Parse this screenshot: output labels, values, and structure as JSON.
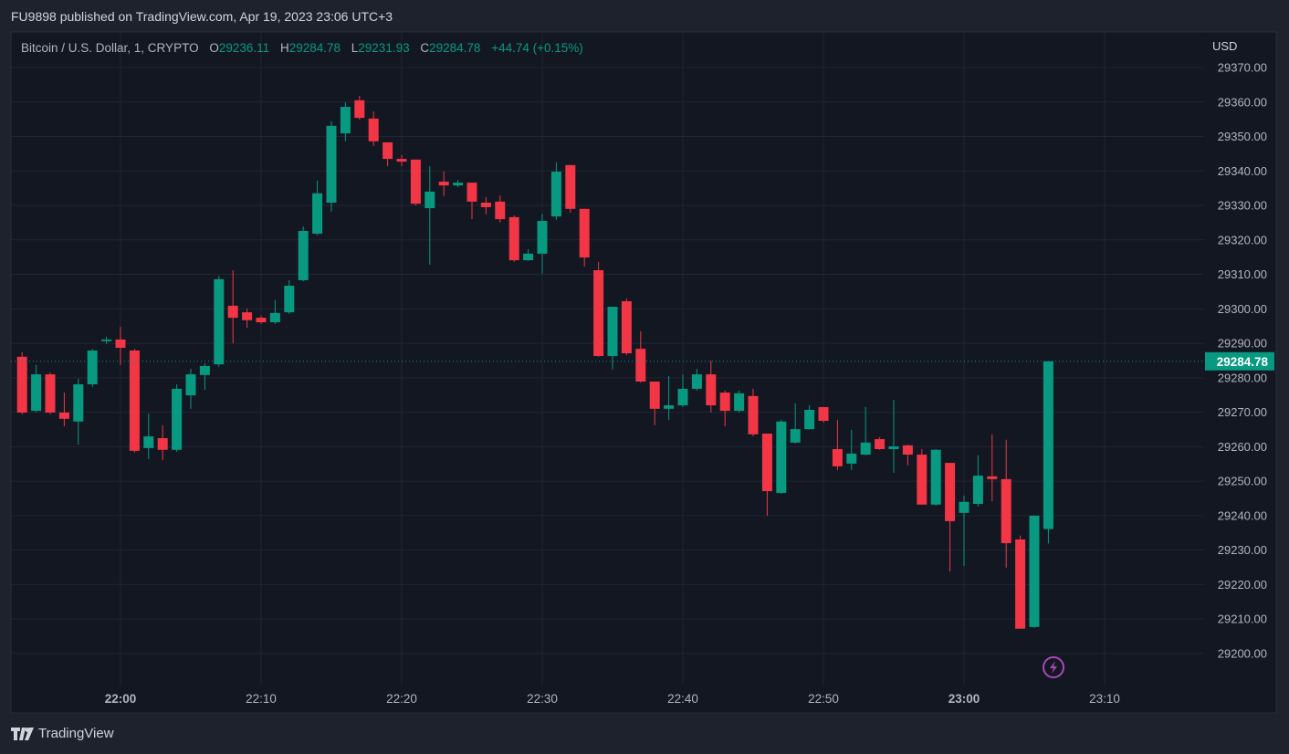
{
  "published": "FU9898 published on TradingView.com, Apr 19, 2023 23:06 UTC+3",
  "legend": {
    "symbol": "Bitcoin / U.S. Dollar, 1, CRYPTO",
    "o_label": "O",
    "o": "29236.11",
    "h_label": "H",
    "h": "29284.78",
    "l_label": "L",
    "l": "29231.93",
    "c_label": "C",
    "c": "29284.78",
    "change": "+44.74 (+0.15%)"
  },
  "footer": {
    "brand": "TradingView",
    "logo_icon": "tradingview-logo-icon"
  },
  "colors": {
    "up": "#089981",
    "down": "#f23645",
    "grid": "#222632",
    "bg": "#131722",
    "event": "#ab47bc"
  },
  "chart_data": {
    "type": "candlestick",
    "title": "Bitcoin / U.S. Dollar, 1, CRYPTO",
    "currency": "USD",
    "ylim": [
      29190,
      29375
    ],
    "y_ticks": [
      "29370.00",
      "29360.00",
      "29350.00",
      "29340.00",
      "29330.00",
      "29320.00",
      "29310.00",
      "29300.00",
      "29290.00",
      "29280.00",
      "29270.00",
      "29260.00",
      "29250.00",
      "29240.00",
      "29230.00",
      "29220.00",
      "29210.00",
      "29200.00"
    ],
    "x_ticks": [
      {
        "label": "22:00",
        "minute": 0,
        "bold": true
      },
      {
        "label": "22:10",
        "minute": 10
      },
      {
        "label": "22:20",
        "minute": 20
      },
      {
        "label": "22:30",
        "minute": 30
      },
      {
        "label": "22:40",
        "minute": 40
      },
      {
        "label": "22:50",
        "minute": 50
      },
      {
        "label": "23:00",
        "minute": 60,
        "bold": true
      },
      {
        "label": "23:10",
        "minute": 70
      }
    ],
    "first_candle_minute": -7,
    "last_price": "29284.78",
    "candles": [
      [
        29286.1,
        29287.4,
        29269.4,
        29269.9
      ],
      [
        29270.4,
        29283.7,
        29269.9,
        29281.0
      ],
      [
        29281.0,
        29281.5,
        29269.4,
        29269.9
      ],
      [
        29269.9,
        29275.7,
        29265.9,
        29268.1
      ],
      [
        29267.3,
        29279.7,
        29260.6,
        29278.1
      ],
      [
        29278.1,
        29288.4,
        29277.3,
        29287.9
      ],
      [
        29290.6,
        29291.9,
        29289.8,
        29291.1
      ],
      [
        29291.1,
        29294.8,
        29283.7,
        29288.7
      ],
      [
        29287.9,
        29288.4,
        29258.3,
        29258.8
      ],
      [
        29259.6,
        29269.6,
        29256.4,
        29263.0
      ],
      [
        29262.5,
        29266.2,
        29256.1,
        29259.1
      ],
      [
        29259.1,
        29278.1,
        29258.5,
        29276.8
      ],
      [
        29274.9,
        29282.6,
        29271.0,
        29281.0
      ],
      [
        29280.8,
        29284.2,
        29276.5,
        29283.4
      ],
      [
        29283.9,
        29309.6,
        29283.2,
        29308.6
      ],
      [
        29300.9,
        29311.2,
        29290.0,
        29297.4
      ],
      [
        29299.0,
        29300.1,
        29294.5,
        29296.7
      ],
      [
        29297.4,
        29298.0,
        29295.6,
        29296.1
      ],
      [
        29296.1,
        29302.5,
        29295.6,
        29298.8
      ],
      [
        29299.0,
        29308.3,
        29298.5,
        29306.7
      ],
      [
        29308.3,
        29323.9,
        29308.0,
        29322.6
      ],
      [
        29321.8,
        29337.2,
        29321.3,
        29333.5
      ],
      [
        29330.8,
        29354.4,
        29328.2,
        29353.1
      ],
      [
        29350.9,
        29359.9,
        29348.6,
        29358.6
      ],
      [
        29360.5,
        29361.8,
        29354.9,
        29355.4
      ],
      [
        29355.2,
        29357.3,
        29347.2,
        29348.6
      ],
      [
        29348.3,
        29348.3,
        29341.4,
        29343.5
      ],
      [
        29343.5,
        29344.6,
        29341.4,
        29342.7
      ],
      [
        29343.3,
        29343.3,
        29330.0,
        29330.5
      ],
      [
        29329.2,
        29341.4,
        29312.8,
        29334.0
      ],
      [
        29336.9,
        29339.8,
        29332.7,
        29335.8
      ],
      [
        29335.8,
        29337.4,
        29335.3,
        29336.6
      ],
      [
        29336.6,
        29336.6,
        29326.0,
        29331.1
      ],
      [
        29330.8,
        29332.4,
        29327.4,
        29329.5
      ],
      [
        29331.1,
        29332.9,
        29325.0,
        29326.0
      ],
      [
        29326.6,
        29327.1,
        29313.6,
        29314.1
      ],
      [
        29314.1,
        29317.3,
        29313.9,
        29316.0
      ],
      [
        29316.0,
        29327.6,
        29310.2,
        29325.5
      ],
      [
        29326.8,
        29342.5,
        29325.8,
        29339.8
      ],
      [
        29341.7,
        29341.7,
        29327.9,
        29329.0
      ],
      [
        29329.0,
        29329.0,
        29312.3,
        29314.9
      ],
      [
        29311.2,
        29313.6,
        29286.1,
        29286.3
      ],
      [
        29286.3,
        29300.6,
        29282.4,
        29300.6
      ],
      [
        29302.2,
        29303.0,
        29286.6,
        29287.1
      ],
      [
        29288.4,
        29293.5,
        29278.6,
        29278.9
      ],
      [
        29278.9,
        29278.9,
        29266.2,
        29271.0
      ],
      [
        29271.0,
        29280.5,
        29267.8,
        29272.0
      ],
      [
        29272.0,
        29281.0,
        29271.5,
        29276.8
      ],
      [
        29276.8,
        29282.6,
        29276.3,
        29281.0
      ],
      [
        29281.0,
        29285.0,
        29269.9,
        29272.0
      ],
      [
        29275.7,
        29276.3,
        29265.9,
        29270.4
      ],
      [
        29270.4,
        29276.3,
        29269.9,
        29275.5
      ],
      [
        29274.7,
        29276.8,
        29263.0,
        29263.6
      ],
      [
        29263.8,
        29263.8,
        29240.0,
        29247.1
      ],
      [
        29246.6,
        29267.8,
        29246.3,
        29267.3
      ],
      [
        29261.2,
        29272.6,
        29260.9,
        29265.1
      ],
      [
        29265.1,
        29272.0,
        29264.9,
        29270.7
      ],
      [
        29271.5,
        29271.5,
        29267.0,
        29267.5
      ],
      [
        29259.3,
        29267.8,
        29253.2,
        29254.3
      ],
      [
        29255.1,
        29264.9,
        29253.2,
        29258.0
      ],
      [
        29257.7,
        29271.5,
        29257.5,
        29261.2
      ],
      [
        29262.2,
        29262.8,
        29259.1,
        29259.3
      ],
      [
        29259.3,
        29273.6,
        29252.4,
        29260.1
      ],
      [
        29260.4,
        29260.6,
        29254.6,
        29257.7
      ],
      [
        29257.7,
        29259.3,
        29243.2,
        29243.2
      ],
      [
        29243.2,
        29259.3,
        29242.9,
        29259.1
      ],
      [
        29255.3,
        29255.3,
        29223.8,
        29238.4
      ],
      [
        29240.8,
        29245.8,
        29225.4,
        29244.0
      ],
      [
        29243.4,
        29257.5,
        29242.6,
        29251.6
      ],
      [
        29251.4,
        29263.6,
        29244.2,
        29250.6
      ],
      [
        29250.6,
        29262.0,
        29224.9,
        29232.0
      ],
      [
        29233.1,
        29234.2,
        29207.2,
        29207.2
      ],
      [
        29207.7,
        29240.0,
        29207.4,
        29240.0
      ],
      [
        29236.11,
        29284.78,
        29231.93,
        29284.78
      ]
    ],
    "candle_format": [
      "open",
      "high",
      "low",
      "close"
    ],
    "event_icon": "lightning-icon"
  }
}
